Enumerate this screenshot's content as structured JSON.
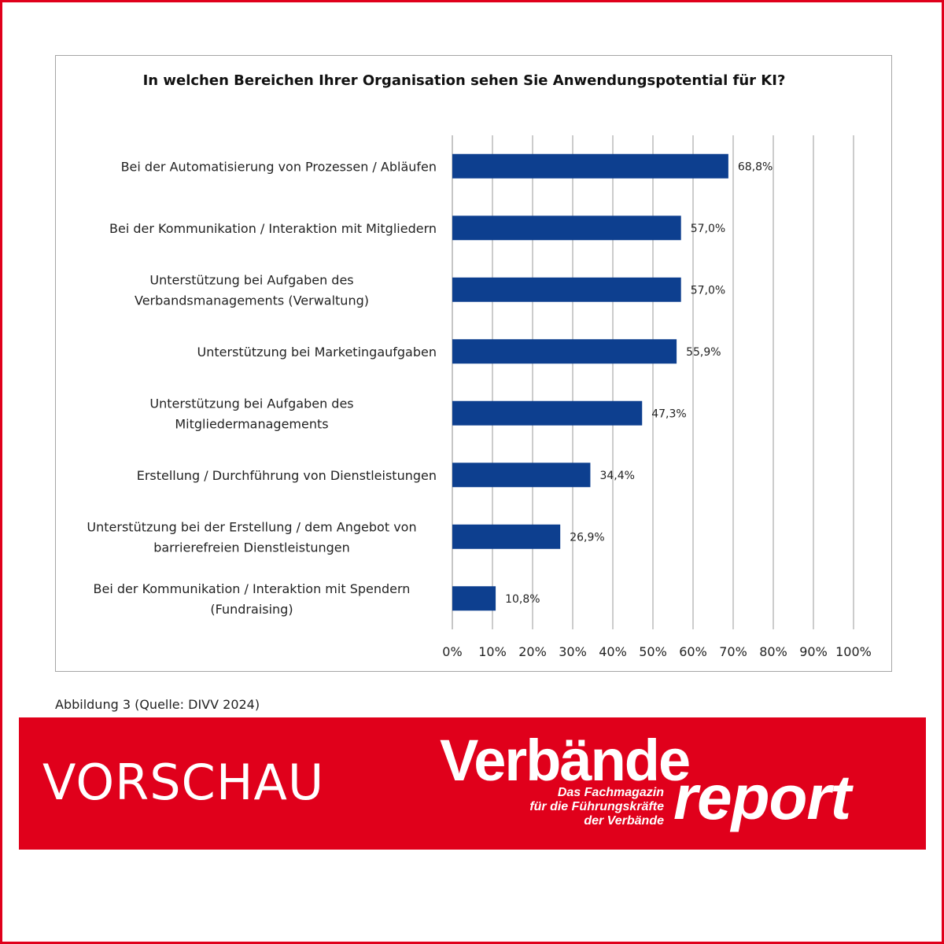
{
  "chart_data": {
    "type": "bar",
    "orientation": "horizontal",
    "title": "In welchen Bereichen Ihrer Organisation sehen Sie Anwendungspotential für KI?",
    "categories": [
      [
        "Bei der Automatisierung von Prozessen / Abläufen"
      ],
      [
        "Bei der Kommunikation / Interaktion mit Mitgliedern"
      ],
      [
        "Unterstützung bei Aufgaben des",
        "Verbandsmanagements (Verwaltung)"
      ],
      [
        "Unterstützung bei Marketingaufgaben"
      ],
      [
        "Unterstützung bei Aufgaben des",
        "Mitgliedermanagements"
      ],
      [
        "Erstellung / Durchführung von Dienstleistungen"
      ],
      [
        "Unterstützung bei der Erstellung / dem Angebot von",
        "barrierefreien Dienstleistungen"
      ],
      [
        "Bei der Kommunikation / Interaktion mit Spendern",
        "(Fundraising)"
      ]
    ],
    "values": [
      68.8,
      57.0,
      57.0,
      55.9,
      47.3,
      34.4,
      26.9,
      10.8
    ],
    "value_labels": [
      "68,8%",
      "57,0%",
      "57,0%",
      "55,9%",
      "47,3%",
      "34,4%",
      "26,9%",
      "10,8%"
    ],
    "xlim": [
      0,
      100
    ],
    "x_ticks": [
      0,
      10,
      20,
      30,
      40,
      50,
      60,
      70,
      80,
      90,
      100
    ],
    "x_tick_labels": [
      "0%",
      "10%",
      "20%",
      "30%",
      "40%",
      "50%",
      "60%",
      "70%",
      "80%",
      "90%",
      "100%"
    ],
    "grid": true,
    "bar_color": "#0d3f8f"
  },
  "caption": "Abbildung 3 (Quelle: DIVV 2024)",
  "banner": {
    "label": "VORSCHAU",
    "brand_top": "Verbände",
    "brand_bottom": "report",
    "tagline": [
      "Das Fachmagazin",
      "für die Führungskräfte",
      "der Verbände"
    ],
    "color": "#e0001b"
  }
}
